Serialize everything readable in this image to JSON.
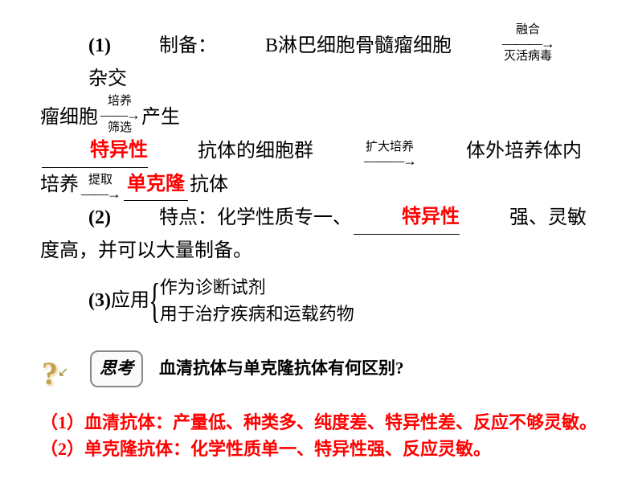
{
  "p1": {
    "label": "(1)",
    "prep": "制备：",
    "cells": "B淋巴细胞骨髓瘤细胞",
    "arrow1_top": "融合",
    "arrow1_bottom": "灭活病毒",
    "hybrid": "杂交",
    "tumor_cells": "瘤细胞",
    "arrow2_top": "培养",
    "arrow2_bottom": "筛选",
    "produce": "产生",
    "specific": "特异性",
    "antibody_group": "抗体的细胞群",
    "arrow3_top": "扩大培养",
    "in_vitro": "体外培养体内",
    "culture": "培养",
    "arrow4_top": "提取",
    "monoclonal": "单克隆",
    "antibody": "抗体"
  },
  "p2": {
    "label": "(2)",
    "char_label": "特点：化学性质专一、",
    "specific": "特异性",
    "rest": "强、灵敏",
    "rest2": "度高，并可以大量制备。"
  },
  "p3": {
    "label": "(3)",
    "apply": "应用",
    "item1": "作为诊断试剂",
    "item2": "用于治疗疾病和运载药物"
  },
  "think": {
    "badge": "思考",
    "question": "血清抗体与单克隆抗体有何区别?"
  },
  "answer": {
    "a1": "（1）血清抗体：产量低、种类多、纯度差、特异性差、反应不够灵敏。",
    "a2": "（2）单克隆抗体：化学性质单一、特异性强、反应灵敏。"
  }
}
